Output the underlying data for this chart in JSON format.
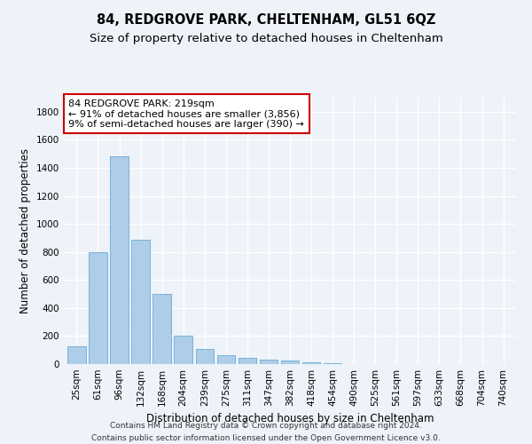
{
  "title": "84, REDGROVE PARK, CHELTENHAM, GL51 6QZ",
  "subtitle": "Size of property relative to detached houses in Cheltenham",
  "xlabel": "Distribution of detached houses by size in Cheltenham",
  "ylabel": "Number of detached properties",
  "categories": [
    "25sqm",
    "61sqm",
    "96sqm",
    "132sqm",
    "168sqm",
    "204sqm",
    "239sqm",
    "275sqm",
    "311sqm",
    "347sqm",
    "382sqm",
    "418sqm",
    "454sqm",
    "490sqm",
    "525sqm",
    "561sqm",
    "597sqm",
    "633sqm",
    "668sqm",
    "704sqm",
    "740sqm"
  ],
  "values": [
    127,
    795,
    1480,
    885,
    498,
    205,
    105,
    65,
    42,
    33,
    27,
    14,
    7,
    0,
    0,
    0,
    0,
    0,
    0,
    0,
    0
  ],
  "bar_color": "#aecde8",
  "bar_edge_color": "#6aaad4",
  "annotation_text": "84 REDGROVE PARK: 219sqm\n← 91% of detached houses are smaller (3,856)\n9% of semi-detached houses are larger (390) →",
  "annotation_box_color": "#ffffff",
  "annotation_box_edge_color": "#cc0000",
  "ylim": [
    0,
    1900
  ],
  "yticks": [
    0,
    200,
    400,
    600,
    800,
    1000,
    1200,
    1400,
    1600,
    1800
  ],
  "footer_line1": "Contains HM Land Registry data © Crown copyright and database right 2024.",
  "footer_line2": "Contains public sector information licensed under the Open Government Licence v3.0.",
  "background_color": "#eef2f9",
  "grid_color": "#ffffff",
  "title_fontsize": 10.5,
  "subtitle_fontsize": 9.5,
  "axis_label_fontsize": 8.5,
  "tick_fontsize": 7.5,
  "annotation_fontsize": 8,
  "footer_fontsize": 6.5
}
